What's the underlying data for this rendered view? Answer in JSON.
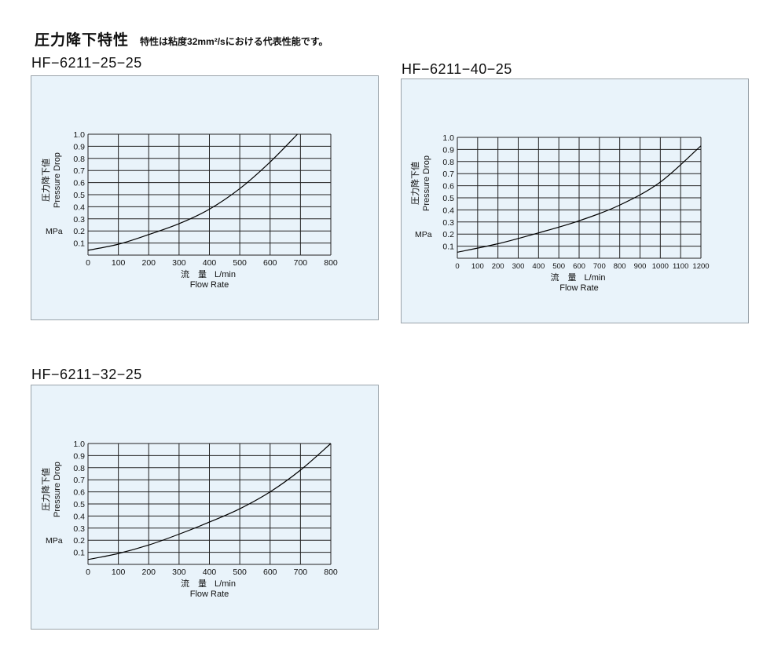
{
  "header": {
    "title": "圧力降下特性",
    "subtitle": "特性は粘度32mm²/sにおける代表性能です。"
  },
  "charts": [
    {
      "model": "HF−6211−25−25"
    },
    {
      "model": "HF−6211−40−25"
    },
    {
      "model": "HF−6211−32−25"
    }
  ],
  "chart_data": [
    {
      "type": "line",
      "title": "HF−6211−25−25",
      "ylabel_jp": "圧力降下値",
      "ylabel": "Pressure Drop",
      "yunit": "MPa",
      "xlabel_jp": "流　量",
      "xunit": "L/min",
      "xlabel": "Flow Rate",
      "xlim": [
        0,
        800
      ],
      "ylim": [
        0,
        1.0
      ],
      "xticks": [
        "0",
        "100",
        "200",
        "300",
        "400",
        "500",
        "600",
        "700",
        "800"
      ],
      "yticks": [
        "0.1",
        "0.2",
        "0.3",
        "0.4",
        "0.5",
        "0.6",
        "0.7",
        "0.8",
        "0.9",
        "1.0"
      ],
      "grid": true,
      "series": [
        {
          "x": [
            0,
            100,
            200,
            300,
            400,
            500,
            600,
            690
          ],
          "y": [
            0.04,
            0.09,
            0.17,
            0.26,
            0.38,
            0.55,
            0.77,
            1.0
          ]
        }
      ]
    },
    {
      "type": "line",
      "title": "HF−6211−40−25",
      "ylabel_jp": "圧力降下値",
      "ylabel": "Pressure Drop",
      "yunit": "MPa",
      "xlabel_jp": "流　量",
      "xunit": "L/min",
      "xlabel": "Flow Rate",
      "xlim": [
        0,
        1200
      ],
      "ylim": [
        0,
        1.0
      ],
      "xticks": [
        "0",
        "100",
        "200",
        "300",
        "400",
        "500",
        "600",
        "700",
        "800",
        "900",
        "1000",
        "1100",
        "1200"
      ],
      "yticks": [
        "0.1",
        "0.2",
        "0.3",
        "0.4",
        "0.5",
        "0.6",
        "0.7",
        "0.8",
        "0.9",
        "1.0"
      ],
      "grid": true,
      "series": [
        {
          "x": [
            0,
            200,
            400,
            600,
            800,
            1000,
            1200
          ],
          "y": [
            0.05,
            0.12,
            0.21,
            0.31,
            0.44,
            0.63,
            0.93
          ]
        }
      ]
    },
    {
      "type": "line",
      "title": "HF−6211−32−25",
      "ylabel_jp": "圧力降下値",
      "ylabel": "Pressure Drop",
      "yunit": "MPa",
      "xlabel_jp": "流　量",
      "xunit": "L/min",
      "xlabel": "Flow Rate",
      "xlim": [
        0,
        800
      ],
      "ylim": [
        0,
        1.0
      ],
      "xticks": [
        "0",
        "100",
        "200",
        "300",
        "400",
        "500",
        "600",
        "700",
        "800"
      ],
      "yticks": [
        "0.1",
        "0.2",
        "0.3",
        "0.4",
        "0.5",
        "0.6",
        "0.7",
        "0.8",
        "0.9",
        "1.0"
      ],
      "grid": true,
      "series": [
        {
          "x": [
            0,
            100,
            200,
            300,
            400,
            500,
            600,
            700,
            800
          ],
          "y": [
            0.04,
            0.09,
            0.16,
            0.25,
            0.35,
            0.46,
            0.6,
            0.78,
            1.0
          ]
        }
      ]
    }
  ]
}
